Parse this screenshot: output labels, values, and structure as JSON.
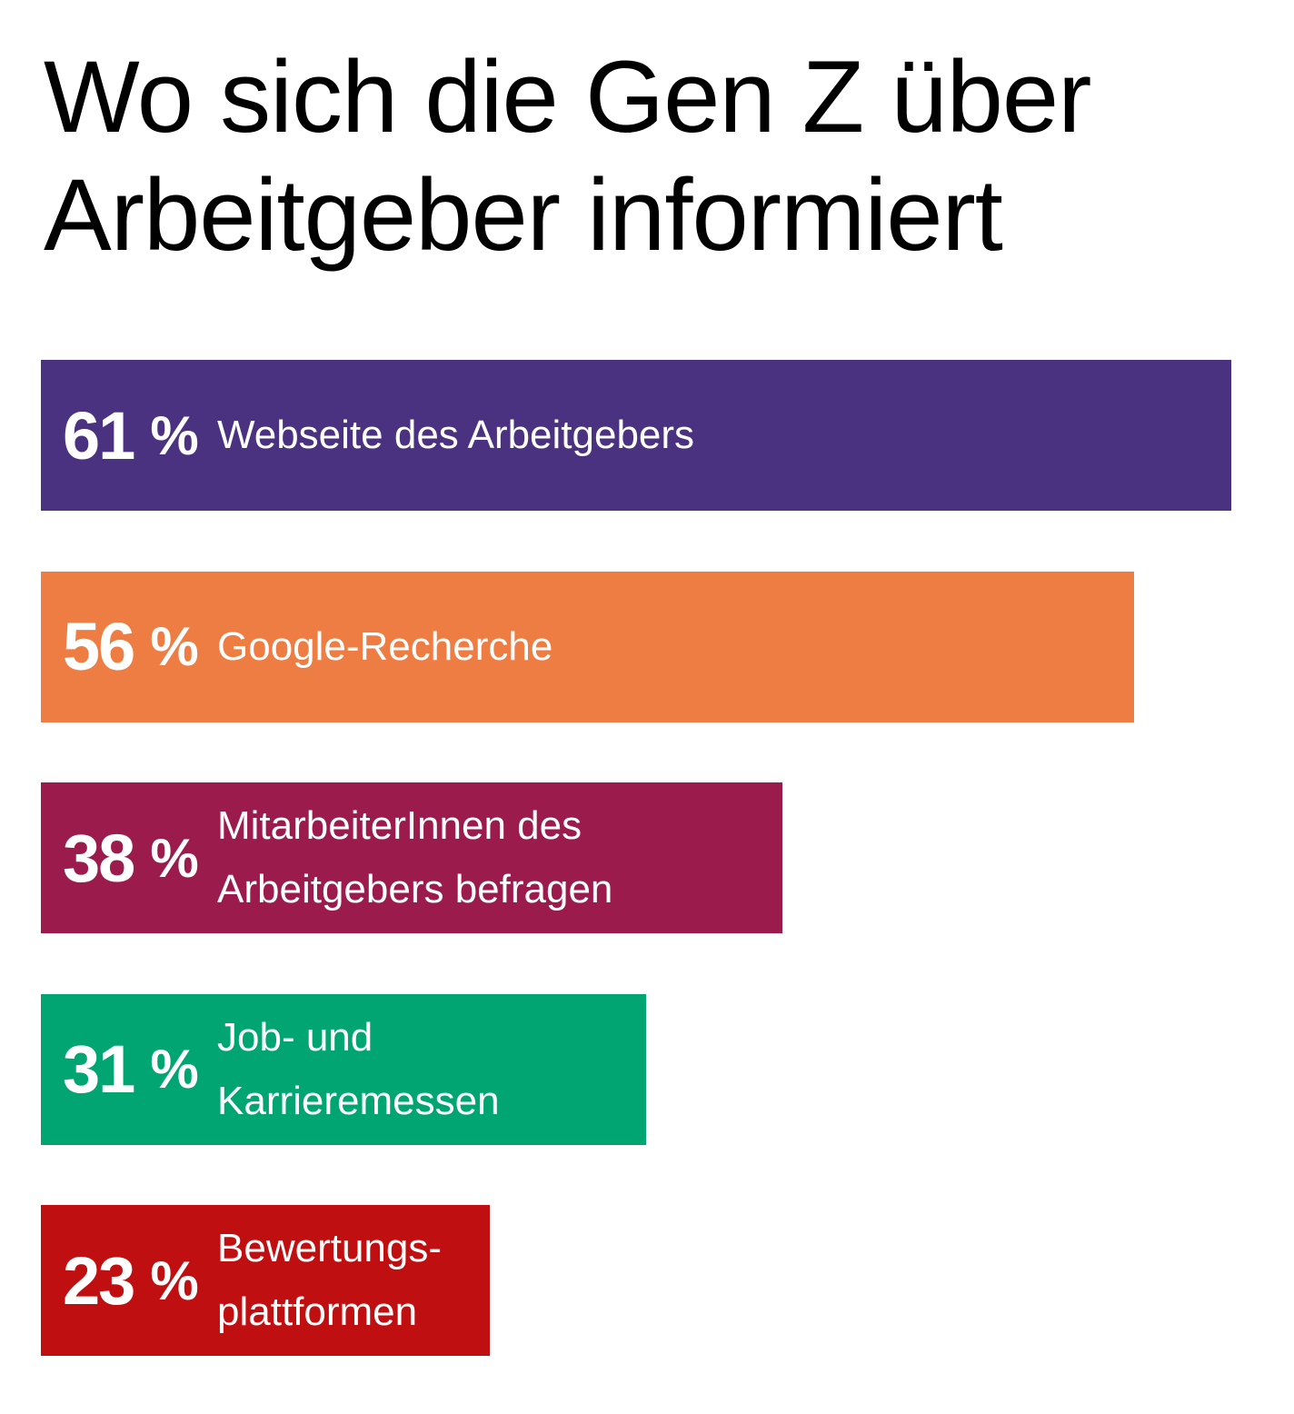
{
  "chart_data": {
    "type": "bar",
    "orientation": "horizontal",
    "title": "Wo sich die Gen Z über Arbeitgeber informiert",
    "xlim": [
      0,
      61
    ],
    "grid": false,
    "unit": "%",
    "bars": [
      {
        "value": 61,
        "value_label": "61",
        "label": "Webseite des Arbeitgebers",
        "color": "#4a3280"
      },
      {
        "value": 56,
        "value_label": "56",
        "label": "Google-Recherche",
        "color": "#ee7d43"
      },
      {
        "value": 38,
        "value_label": "38",
        "label": "MitarbeiterInnen des\nArbeitgebers befragen",
        "color": "#9c1b4d"
      },
      {
        "value": 31,
        "value_label": "31",
        "label": "Job- und\nKarrieremessen",
        "color": "#00a571"
      },
      {
        "value": 23,
        "value_label": "23",
        "label": "Bewertungs-\nplattformen",
        "color": "#c00f11"
      }
    ]
  }
}
